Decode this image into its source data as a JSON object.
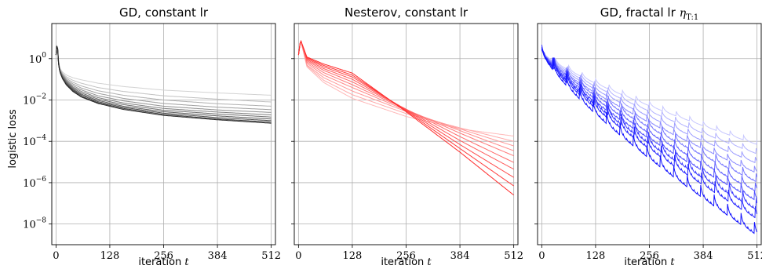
{
  "chart_data": [
    {
      "type": "line",
      "id": "gd-constant",
      "title": "GD, constant lr",
      "title_math": "",
      "title_sub": "",
      "xlabel": "iteration",
      "xlabel_math": "t",
      "ylabel": "logistic loss",
      "x_ticks": [
        0,
        128,
        256,
        384,
        512
      ],
      "xlim": [
        -10,
        522
      ],
      "y_scale": "log",
      "y_ticks": [
        {
          "base": "10",
          "exp": "0"
        },
        {
          "base": "10",
          "exp": "−2"
        },
        {
          "base": "10",
          "exp": "−4"
        },
        {
          "base": "10",
          "exp": "−6"
        },
        {
          "base": "10",
          "exp": "−8"
        }
      ],
      "y_tick_values": [
        1,
        0.01,
        0.0001,
        1e-06,
        1e-08
      ],
      "ylim": [
        1e-09,
        50
      ],
      "grid": true,
      "color": "#000000",
      "kind": "gd",
      "series": [
        {
          "x": [
            0,
            3,
            6,
            9,
            15,
            25,
            40,
            60,
            100,
            160,
            256,
            384,
            512
          ],
          "values": [
            1.5,
            6.5,
            0.9,
            0.35,
            0.23,
            0.16,
            0.12,
            0.095,
            0.065,
            0.045,
            0.03,
            0.022,
            0.017
          ]
        },
        {
          "x": [
            0,
            3,
            6,
            9,
            15,
            25,
            40,
            60,
            100,
            160,
            256,
            384,
            512
          ],
          "values": [
            1.5,
            6.5,
            0.85,
            0.33,
            0.2,
            0.13,
            0.09,
            0.065,
            0.04,
            0.026,
            0.016,
            0.011,
            0.008
          ]
        },
        {
          "x": [
            0,
            3,
            6,
            9,
            15,
            25,
            40,
            60,
            100,
            160,
            256,
            384,
            512
          ],
          "values": [
            1.5,
            6.5,
            0.8,
            0.31,
            0.18,
            0.11,
            0.072,
            0.048,
            0.028,
            0.017,
            0.01,
            0.0066,
            0.005
          ]
        },
        {
          "x": [
            0,
            3,
            6,
            9,
            15,
            25,
            40,
            60,
            100,
            160,
            256,
            384,
            512
          ],
          "values": [
            1.5,
            6.5,
            0.75,
            0.3,
            0.17,
            0.095,
            0.06,
            0.038,
            0.021,
            0.012,
            0.0068,
            0.0045,
            0.0034
          ]
        },
        {
          "x": [
            0,
            3,
            6,
            9,
            15,
            25,
            40,
            60,
            100,
            160,
            256,
            384,
            512
          ],
          "values": [
            1.5,
            6.5,
            0.7,
            0.29,
            0.16,
            0.085,
            0.05,
            0.031,
            0.016,
            0.0091,
            0.005,
            0.0033,
            0.0025
          ]
        },
        {
          "x": [
            0,
            3,
            6,
            9,
            15,
            25,
            40,
            60,
            100,
            160,
            256,
            384,
            512
          ],
          "values": [
            1.5,
            6.5,
            0.68,
            0.28,
            0.15,
            0.077,
            0.043,
            0.026,
            0.013,
            0.0072,
            0.0039,
            0.0026,
            0.0019
          ]
        },
        {
          "x": [
            0,
            3,
            6,
            9,
            15,
            25,
            40,
            60,
            100,
            160,
            256,
            384,
            512
          ],
          "values": [
            1.5,
            6.5,
            0.65,
            0.27,
            0.14,
            0.07,
            0.038,
            0.022,
            0.011,
            0.006,
            0.0032,
            0.0021,
            0.0015
          ]
        },
        {
          "x": [
            0,
            3,
            6,
            9,
            15,
            25,
            40,
            60,
            100,
            160,
            256,
            384,
            512
          ],
          "values": [
            1.5,
            6.5,
            0.62,
            0.26,
            0.13,
            0.064,
            0.034,
            0.019,
            0.0095,
            0.005,
            0.0027,
            0.0017,
            0.0012
          ]
        },
        {
          "x": [
            0,
            3,
            6,
            9,
            15,
            25,
            40,
            60,
            100,
            160,
            256,
            384,
            512
          ],
          "values": [
            1.5,
            6.5,
            0.6,
            0.25,
            0.12,
            0.059,
            0.031,
            0.017,
            0.0083,
            0.0044,
            0.0023,
            0.0014,
            0.001
          ]
        },
        {
          "x": [
            0,
            3,
            6,
            9,
            15,
            25,
            40,
            60,
            100,
            160,
            256,
            384,
            512
          ],
          "values": [
            1.5,
            6.5,
            0.58,
            0.24,
            0.115,
            0.055,
            0.028,
            0.015,
            0.0074,
            0.0039,
            0.002,
            0.0012,
            0.00085
          ]
        },
        {
          "x": [
            0,
            3,
            6,
            9,
            15,
            25,
            40,
            60,
            100,
            160,
            256,
            384,
            512
          ],
          "values": [
            1.5,
            6.5,
            0.56,
            0.23,
            0.11,
            0.052,
            0.026,
            0.014,
            0.0068,
            0.0035,
            0.0018,
            0.0011,
            0.00075
          ]
        }
      ]
    },
    {
      "type": "line",
      "id": "nesterov-constant",
      "title": "Nesterov, constant lr",
      "title_math": "",
      "title_sub": "",
      "xlabel": "iteration",
      "xlabel_math": "t",
      "ylabel": "",
      "x_ticks": [
        0,
        128,
        256,
        384,
        512
      ],
      "xlim": [
        -10,
        522
      ],
      "y_scale": "log",
      "y_ticks": [],
      "y_tick_values": [
        1,
        0.01,
        0.0001,
        1e-06,
        1e-08
      ],
      "ylim": [
        1e-09,
        50
      ],
      "grid": true,
      "color": "#ff0000",
      "kind": "nesterov",
      "series": [
        {
          "x": [
            0,
            5,
            20,
            60,
            128,
            256,
            384,
            512
          ],
          "values": [
            1.5,
            8,
            0.4,
            0.07,
            0.012,
            0.0016,
            0.0004,
            0.00018
          ]
        },
        {
          "x": [
            0,
            5,
            20,
            60,
            128,
            256,
            384,
            512
          ],
          "values": [
            1.5,
            8,
            0.45,
            0.09,
            0.018,
            0.0022,
            0.00045,
            0.0001
          ]
        },
        {
          "x": [
            0,
            5,
            20,
            60,
            128,
            256,
            384,
            512
          ],
          "values": [
            1.5,
            8,
            0.5,
            0.12,
            0.027,
            0.0028,
            0.0004,
            6e-05
          ]
        },
        {
          "x": [
            0,
            5,
            20,
            60,
            128,
            256,
            384,
            512
          ],
          "values": [
            1.5,
            8,
            0.6,
            0.16,
            0.04,
            0.0032,
            0.00033,
            3.5e-05
          ]
        },
        {
          "x": [
            0,
            5,
            20,
            60,
            128,
            256,
            384,
            512
          ],
          "values": [
            1.5,
            8,
            0.7,
            0.21,
            0.055,
            0.0035,
            0.00025,
            2e-05
          ]
        },
        {
          "x": [
            0,
            5,
            20,
            60,
            128,
            256,
            384,
            512
          ],
          "values": [
            1.5,
            8,
            0.8,
            0.27,
            0.075,
            0.0036,
            0.00017,
            9.5e-06
          ]
        },
        {
          "x": [
            0,
            5,
            20,
            60,
            128,
            256,
            384,
            512
          ],
          "values": [
            1.5,
            8,
            0.9,
            0.33,
            0.1,
            0.0035,
            0.00011,
            4.5e-06
          ]
        },
        {
          "x": [
            0,
            5,
            20,
            60,
            128,
            256,
            384,
            512
          ],
          "values": [
            1.5,
            8,
            1.0,
            0.4,
            0.13,
            0.0033,
            7e-05,
            1.8e-06
          ]
        },
        {
          "x": [
            0,
            5,
            20,
            60,
            128,
            256,
            384,
            512
          ],
          "values": [
            1.5,
            8,
            1.1,
            0.47,
            0.16,
            0.003,
            4.5e-05,
            7e-07
          ]
        },
        {
          "x": [
            0,
            5,
            20,
            60,
            128,
            256,
            384,
            512
          ],
          "values": [
            1.5,
            8,
            1.2,
            0.55,
            0.2,
            0.0027,
            3e-05,
            2.5e-07
          ]
        }
      ]
    },
    {
      "type": "line",
      "id": "gd-fractal",
      "title": "GD, fractal lr",
      "title_math": "η",
      "title_sub": "T:1",
      "xlabel": "iteration",
      "xlabel_math": "t",
      "ylabel": "",
      "x_ticks": [
        0,
        128,
        256,
        384,
        512
      ],
      "xlim": [
        -10,
        522
      ],
      "y_scale": "log",
      "y_ticks": [],
      "y_tick_values": [
        1,
        0.01,
        0.0001,
        1e-06,
        1e-08
      ],
      "ylim": [
        1e-09,
        50
      ],
      "grid": true,
      "color": "#0000ff",
      "kind": "fractal",
      "series": [
        {
          "x": [
            0,
            512
          ],
          "values": [
            3,
            0.0001
          ]
        },
        {
          "x": [
            0,
            512
          ],
          "values": [
            3,
            3.5e-05
          ]
        },
        {
          "x": [
            0,
            512
          ],
          "values": [
            3,
            1.2e-05
          ]
        },
        {
          "x": [
            0,
            512
          ],
          "values": [
            3,
            4e-06
          ]
        },
        {
          "x": [
            0,
            512
          ],
          "values": [
            3,
            1.5e-06
          ]
        },
        {
          "x": [
            0,
            512
          ],
          "values": [
            3,
            5e-07
          ]
        },
        {
          "x": [
            0,
            512
          ],
          "values": [
            3,
            1.8e-07
          ]
        },
        {
          "x": [
            0,
            512
          ],
          "values": [
            3,
            6.5e-08
          ]
        },
        {
          "x": [
            0,
            512
          ],
          "values": [
            3,
            2.5e-08
          ]
        },
        {
          "x": [
            0,
            512
          ],
          "values": [
            3,
            4e-09
          ]
        }
      ]
    }
  ]
}
